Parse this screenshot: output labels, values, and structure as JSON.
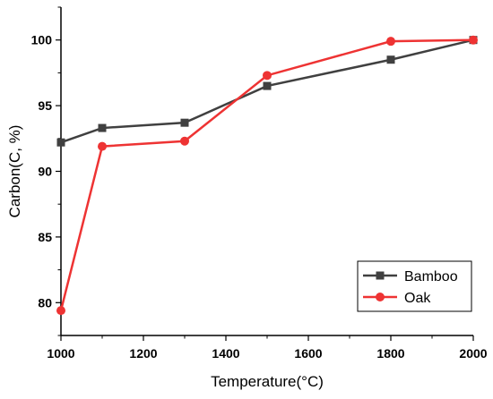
{
  "chart_data": {
    "type": "line",
    "title": "",
    "xlabel": "Temperature(°C)",
    "ylabel": "Carbon(C, %)",
    "xlim": [
      1000,
      2000
    ],
    "ylim": [
      77.5,
      102.5
    ],
    "xticks": [
      1000,
      1200,
      1400,
      1600,
      1800,
      2000
    ],
    "yticks": [
      80,
      85,
      90,
      95,
      100
    ],
    "grid": false,
    "legend_position": "bottom-right",
    "series": [
      {
        "name": "Bamboo",
        "color": "#404040",
        "marker": "square",
        "x": [
          1000,
          1100,
          1300,
          1500,
          1800,
          2000
        ],
        "y": [
          92.2,
          93.3,
          93.7,
          96.5,
          98.5,
          100.0
        ]
      },
      {
        "name": "Oak",
        "color": "#ee3333",
        "marker": "circle",
        "x": [
          1000,
          1100,
          1300,
          1500,
          1800,
          2000
        ],
        "y": [
          79.4,
          91.9,
          92.3,
          97.3,
          99.9,
          100.0
        ]
      }
    ]
  }
}
